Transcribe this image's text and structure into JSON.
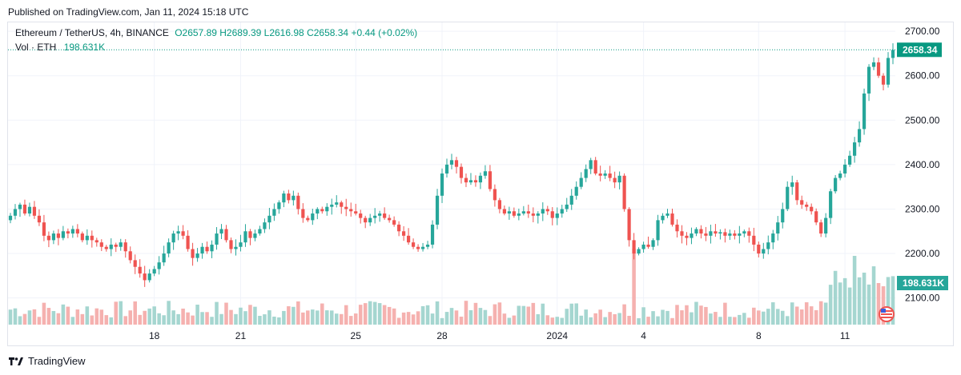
{
  "published": "Published on TradingView.com, Jan 11, 2024 15:18 UTC",
  "legend": {
    "symbol": "Ethereum / TetherUS, 4h, BINANCE",
    "open": "O2657.89",
    "high": "H2689.39",
    "low": "L2616.98",
    "close": "C2658.34",
    "change": "+0.44 (+0.02%)"
  },
  "volume_legend": {
    "label": "Vol · ETH",
    "value": "198.631K"
  },
  "footer": {
    "brand": "TradingView"
  },
  "colors": {
    "up": "#26a69a",
    "down": "#ef5350",
    "vol_up": "#a5d6d0",
    "vol_down": "#f5b1af",
    "grid": "#f0f3fa",
    "price_tag": "#089981"
  },
  "icons": {
    "logo": "tradingview-logo-icon",
    "flag": "us-flag-icon"
  },
  "chart_data": {
    "type": "candlestick",
    "ylim": [
      2040,
      2720
    ],
    "y_ticks": [
      "2100.00",
      "2200.00",
      "2300.00",
      "2400.00",
      "2500.00",
      "2600.00",
      "2700.00"
    ],
    "x_tick_labels": [
      {
        "label": "18",
        "bar": 30
      },
      {
        "label": "21",
        "bar": 48
      },
      {
        "label": "25",
        "bar": 72
      },
      {
        "label": "28",
        "bar": 90
      },
      {
        "label": "2024",
        "bar": 114
      },
      {
        "label": "4",
        "bar": 132
      },
      {
        "label": "8",
        "bar": 156
      },
      {
        "label": "11",
        "bar": 174
      }
    ],
    "last_price": "2658.34",
    "last_volume": "198.631K",
    "closes": [
      2285,
      2300,
      2310,
      2290,
      2305,
      2285,
      2270,
      2240,
      2230,
      2245,
      2235,
      2250,
      2245,
      2255,
      2245,
      2230,
      2240,
      2230,
      2225,
      2215,
      2210,
      2220,
      2215,
      2225,
      2205,
      2185,
      2170,
      2155,
      2140,
      2155,
      2165,
      2180,
      2200,
      2225,
      2245,
      2250,
      2240,
      2210,
      2190,
      2200,
      2215,
      2205,
      2220,
      2245,
      2255,
      2230,
      2210,
      2215,
      2225,
      2250,
      2235,
      2245,
      2255,
      2270,
      2285,
      2300,
      2315,
      2335,
      2320,
      2330,
      2300,
      2280,
      2275,
      2290,
      2300,
      2295,
      2305,
      2310,
      2315,
      2305,
      2300,
      2295,
      2290,
      2280,
      2270,
      2280,
      2285,
      2290,
      2280,
      2275,
      2265,
      2250,
      2240,
      2225,
      2215,
      2210,
      2215,
      2220,
      2265,
      2330,
      2380,
      2400,
      2410,
      2395,
      2370,
      2360,
      2365,
      2360,
      2375,
      2385,
      2345,
      2320,
      2300,
      2290,
      2295,
      2285,
      2290,
      2295,
      2290,
      2285,
      2290,
      2300,
      2295,
      2280,
      2290,
      2300,
      2310,
      2330,
      2350,
      2370,
      2390,
      2410,
      2380,
      2375,
      2380,
      2370,
      2360,
      2375,
      2300,
      2230,
      2200,
      2210,
      2220,
      2215,
      2230,
      2275,
      2285,
      2290,
      2265,
      2250,
      2240,
      2235,
      2245,
      2255,
      2245,
      2240,
      2250,
      2245,
      2248,
      2240,
      2245,
      2240,
      2245,
      2250,
      2240,
      2220,
      2200,
      2210,
      2225,
      2245,
      2270,
      2300,
      2350,
      2360,
      2320,
      2310,
      2305,
      2295,
      2270,
      2245,
      2280,
      2340,
      2370,
      2380,
      2400,
      2420,
      2450,
      2480,
      2560,
      2620,
      2630,
      2600,
      2580,
      2640,
      2658
    ]
  }
}
